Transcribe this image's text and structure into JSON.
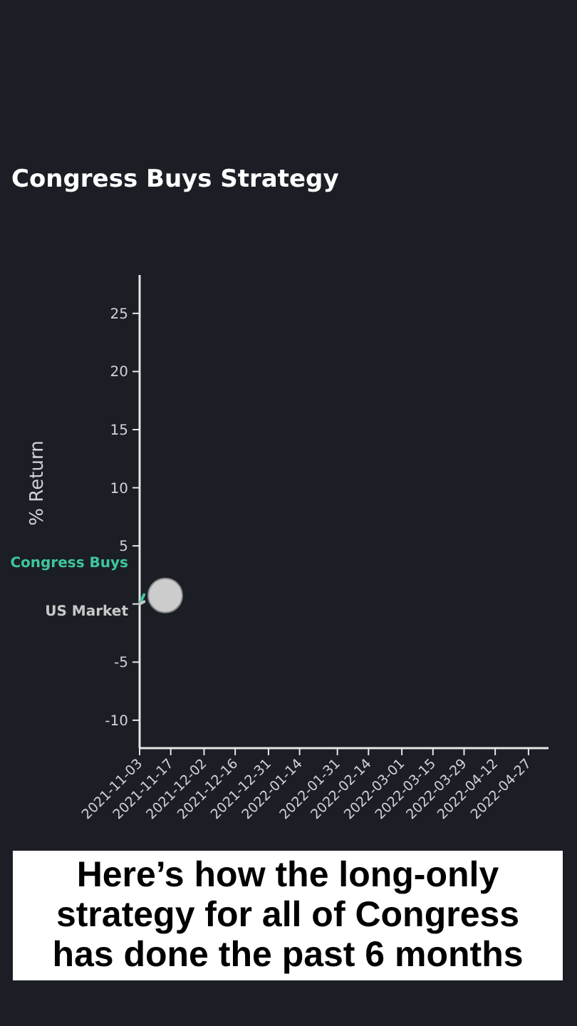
{
  "chart_data": {
    "type": "line",
    "title": "Congress Buys Strategy",
    "ylabel": "% Return",
    "annotations": [
      "Here’s how the long-only strategy for all of Congress has done the past 6 months"
    ],
    "xlim": [
      "2021-11-03",
      "2022-05-06"
    ],
    "xticks": [
      "2021-11-03",
      "2021-11-17",
      "2021-12-02",
      "2021-12-16",
      "2021-12-31",
      "2022-01-14",
      "2022-01-31",
      "2022-02-14",
      "2022-03-01",
      "2022-03-15",
      "2022-03-29",
      "2022-04-12",
      "2022-04-27"
    ],
    "ylim": [
      -12.4,
      28.3
    ],
    "yticks": [
      -10,
      -5,
      {
        "value": 0,
        "label": null
      },
      5,
      10,
      15,
      20,
      25
    ],
    "series": [
      {
        "name": "Congress Buys",
        "color": "#3fc59d",
        "x": [
          "2021-11-03",
          "2021-11-05"
        ],
        "values": [
          0,
          0.8
        ]
      },
      {
        "name": "US Market",
        "color": "#c8c8c8",
        "x": [
          "2021-11-03",
          "2021-11-05"
        ],
        "values": [
          0,
          0.2
        ]
      }
    ],
    "grid": false,
    "legend": false,
    "marker": "none",
    "line_style": "solid"
  }
}
